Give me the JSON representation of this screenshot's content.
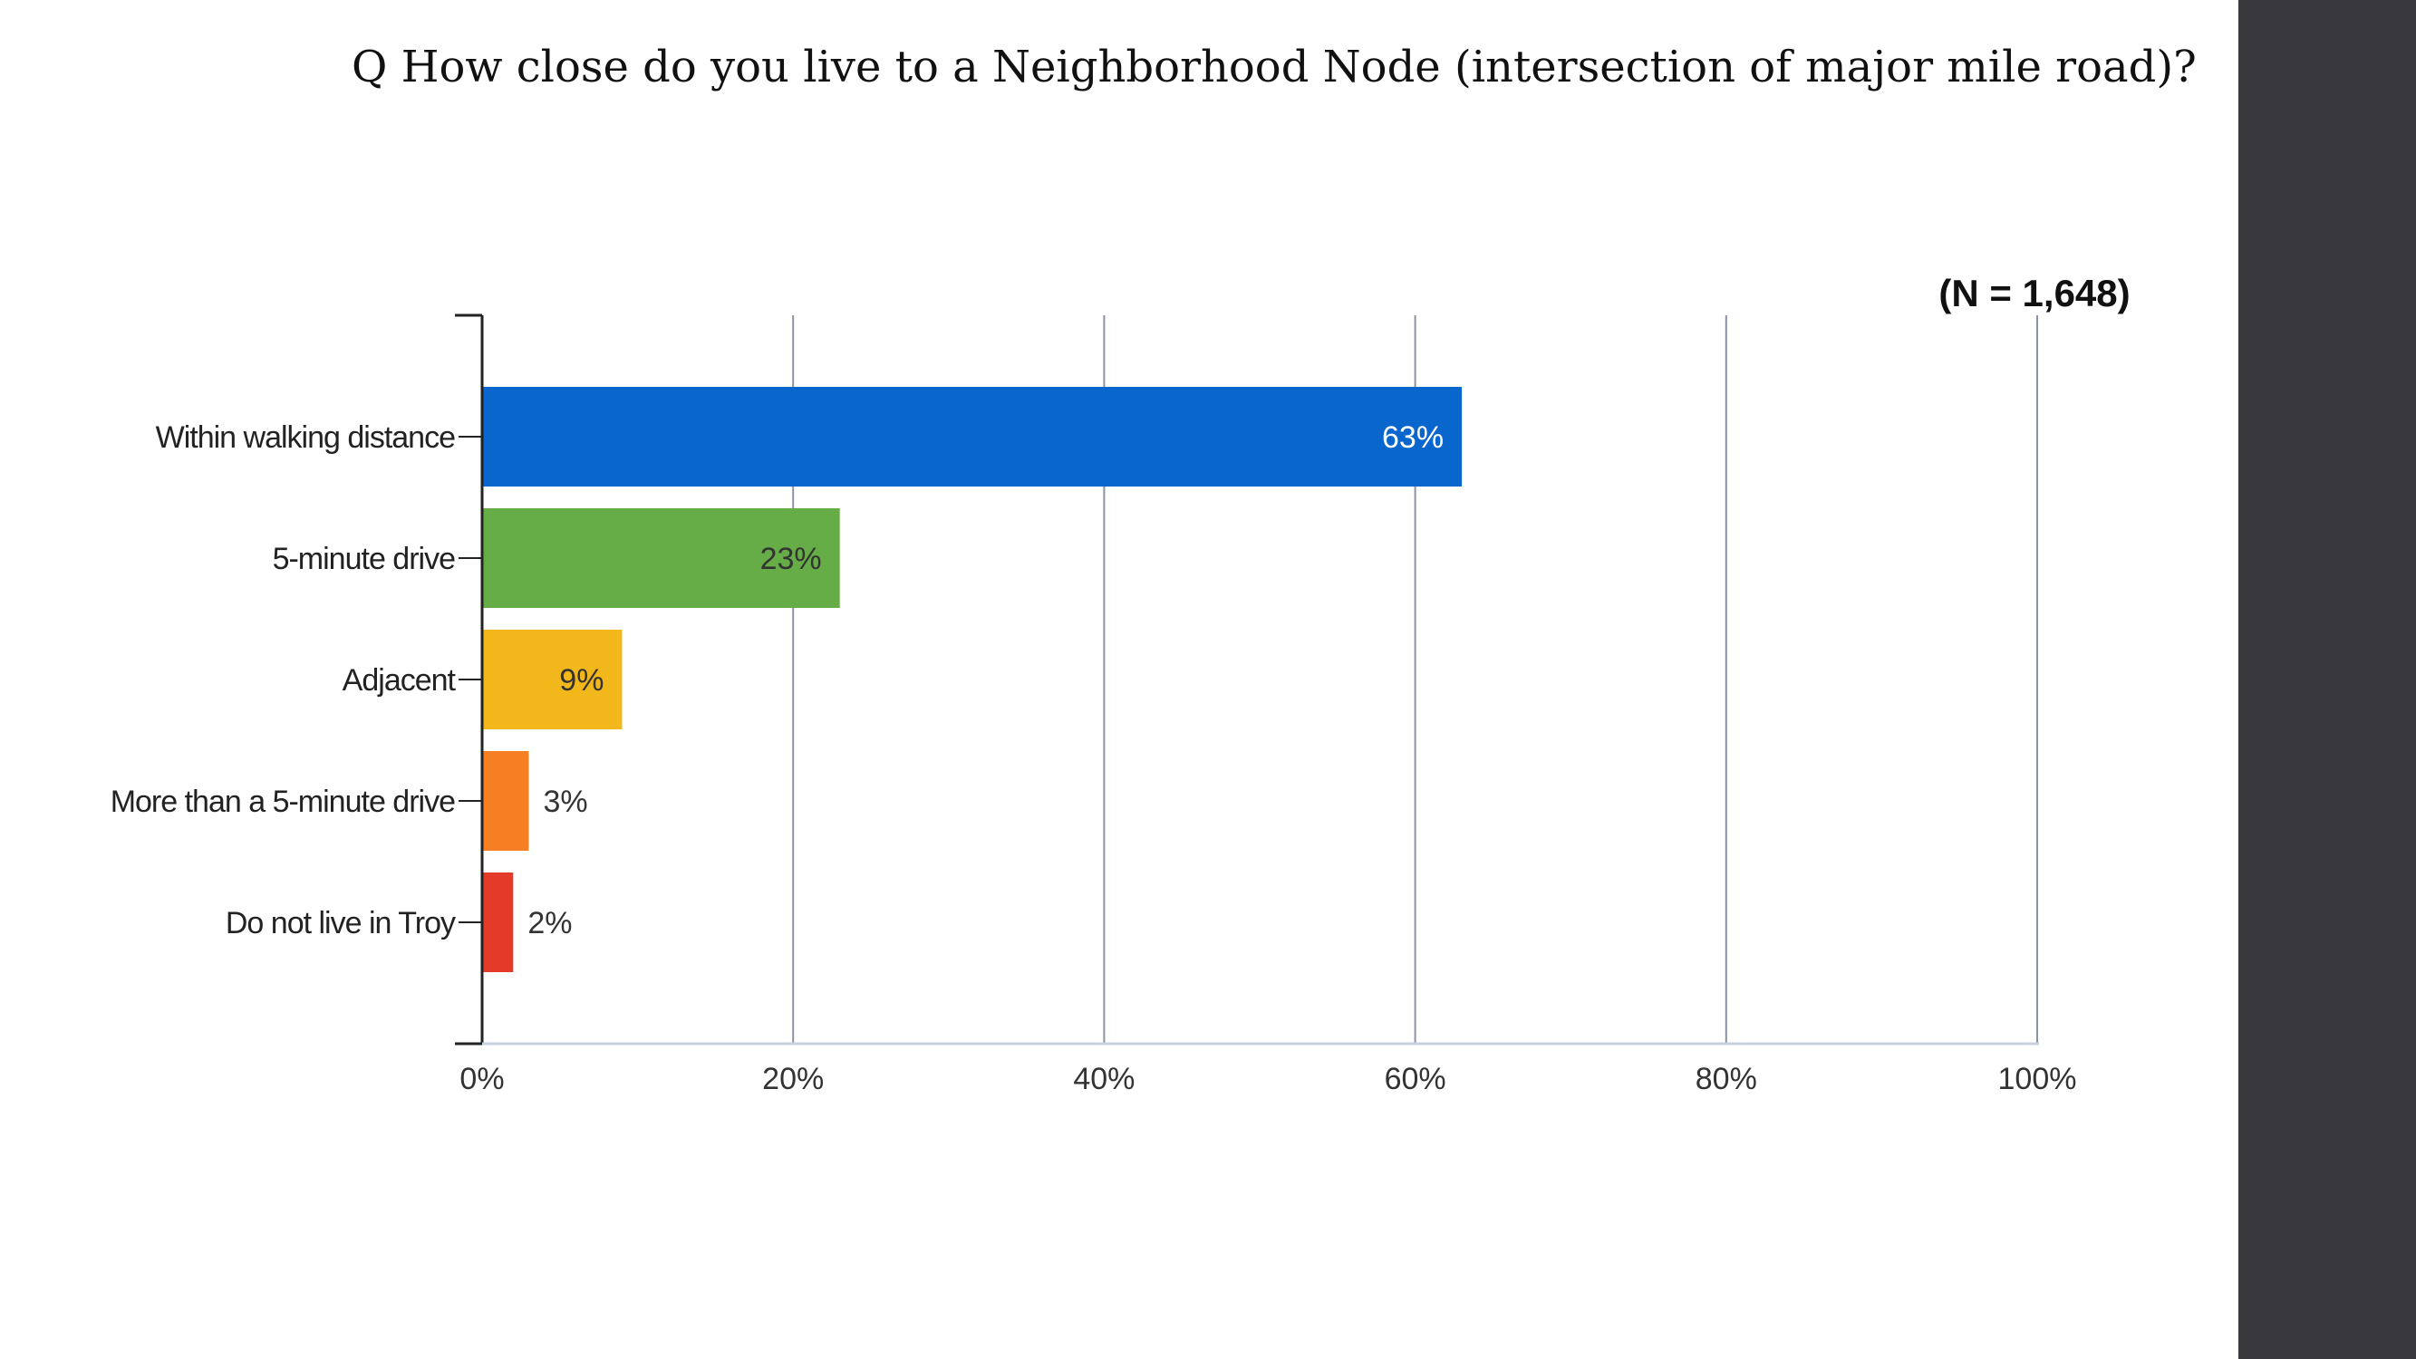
{
  "question": "Q How close do you live to a Neighborhood Node (intersection of major mile road)?",
  "sample_size": "(N = 1,648)",
  "chart_data": {
    "type": "bar",
    "orientation": "horizontal",
    "categories": [
      "Within walking distance",
      "5-minute drive",
      "Adjacent",
      "More than a 5-minute drive",
      "Do not live in Troy"
    ],
    "values": [
      63,
      23,
      9,
      3,
      2
    ],
    "value_labels": [
      "63%",
      "23%",
      "9%",
      "3%",
      "2%"
    ],
    "colors": [
      "#0866cc",
      "#67ad47",
      "#f2b71b",
      "#f57f22",
      "#e43a2a"
    ],
    "xlim": [
      0,
      100
    ],
    "x_ticks": [
      0,
      20,
      40,
      60,
      80,
      100
    ],
    "x_tick_labels": [
      "0%",
      "20%",
      "40%",
      "60%",
      "80%",
      "100%"
    ],
    "grid": true,
    "title": "",
    "xlabel": "",
    "ylabel": ""
  }
}
